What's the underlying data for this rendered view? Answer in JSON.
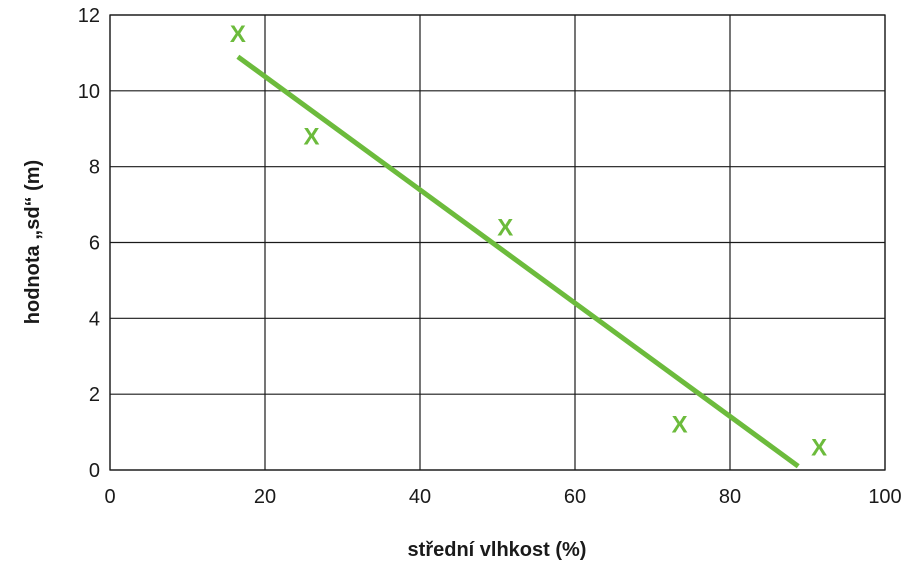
{
  "chart_data": {
    "type": "scatter",
    "xlabel": "střední vlhkost (%)",
    "ylabel": "hodnota „sd“ (m)",
    "xlim": [
      0,
      100
    ],
    "ylim": [
      0,
      12
    ],
    "x_ticks": [
      "0",
      "20",
      "40",
      "60",
      "80",
      "100"
    ],
    "y_ticks": [
      "0",
      "2",
      "4",
      "6",
      "8",
      "10",
      "12"
    ],
    "grid": true,
    "legend": "none",
    "marker_symbol": "X",
    "color": "#6cbb3c",
    "series": [
      {
        "type": "scatter",
        "x": [
          16.5,
          26,
          51,
          73.5,
          91.5
        ],
        "y": [
          11.5,
          8.8,
          6.4,
          1.2,
          0.6
        ]
      },
      {
        "type": "line",
        "x": [
          16.5,
          88.8
        ],
        "y": [
          10.9,
          0.1
        ]
      }
    ]
  }
}
